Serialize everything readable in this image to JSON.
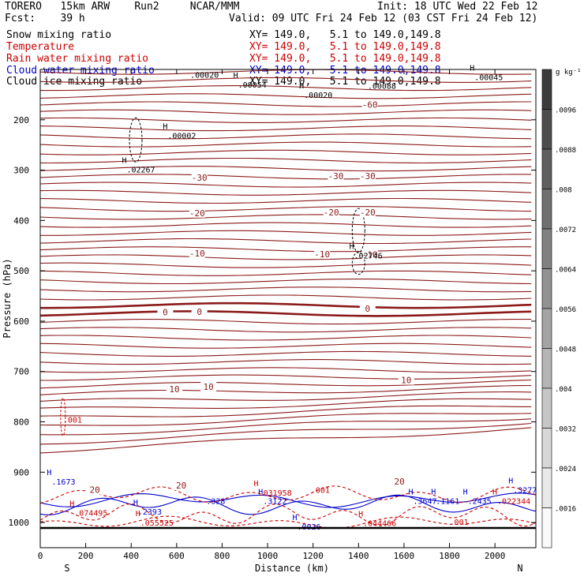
{
  "header": {
    "model": "TORERO   15km ARW    Run2     NCAR/MMM",
    "init": "Init: 18 UTC Wed 22 Feb 12",
    "fcst": "Fcst:    39 h",
    "valid": "Valid: 09 UTC Fri 24 Feb 12 (03 CST Fri 24 Feb 12)",
    "fields": [
      {
        "name": "Snow mixing ratio",
        "xy": "XY= 149.0,   5.1 to 149.0,149.8",
        "color": "#000000"
      },
      {
        "name": "Temperature",
        "xy": "XY= 149.0,   5.1 to 149.0,149.8",
        "color": "#cc0000"
      },
      {
        "name": "Rain water mixing ratio",
        "xy": "XY= 149.0,   5.1 to 149.0,149.8",
        "color": "#cc0000"
      },
      {
        "name": "Cloud water mixing ratio",
        "xy": "XY= 149.0,   5.1 to 149.0,149.8",
        "color": "#0000cc"
      },
      {
        "name": "Cloud ice mixing ratio",
        "xy": "XY= 149.0,   5.1 to 149.0,149.8",
        "color": "#000000"
      }
    ]
  },
  "chart_data": {
    "type": "contour-cross-section",
    "xlabel": "Distance (km)",
    "ylabel": "Pressure (hPa)",
    "xlim": [
      0,
      2180
    ],
    "ylim": [
      1050,
      100
    ],
    "x_ticks": [
      0,
      200,
      400,
      600,
      800,
      1000,
      1200,
      1400,
      1600,
      1800,
      2000
    ],
    "y_ticks": [
      200,
      300,
      400,
      500,
      600,
      700,
      800,
      900,
      1000
    ],
    "x_ends": {
      "left": "S",
      "right": "N"
    },
    "colorbar": {
      "unit": "g kg⁻¹",
      "ticks": [
        ".0096",
        ".0088",
        ".008",
        ".0072",
        ".0064",
        ".0056",
        ".0048",
        ".004",
        ".0032",
        ".0024",
        ".0016"
      ]
    },
    "temperature_labels": [
      {
        "text": "-60",
        "x": 1450,
        "p": 170
      },
      {
        "text": "-30",
        "x": 700,
        "p": 315
      },
      {
        "text": "-30",
        "x": 1300,
        "p": 312
      },
      {
        "text": "-30",
        "x": 1440,
        "p": 312
      },
      {
        "text": "-20",
        "x": 690,
        "p": 385
      },
      {
        "text": "-20",
        "x": 1280,
        "p": 384
      },
      {
        "text": "-20",
        "x": 1440,
        "p": 384
      },
      {
        "text": "-10",
        "x": 690,
        "p": 465
      },
      {
        "text": "-10",
        "x": 1240,
        "p": 467
      },
      {
        "text": "-10",
        "x": 1450,
        "p": 468
      },
      {
        "text": "0",
        "x": 550,
        "p": 582
      },
      {
        "text": "0",
        "x": 700,
        "p": 581
      },
      {
        "text": "0",
        "x": 1440,
        "p": 575
      },
      {
        "text": "10",
        "x": 590,
        "p": 735
      },
      {
        "text": "10",
        "x": 740,
        "p": 730
      },
      {
        "text": "10",
        "x": 1610,
        "p": 717
      },
      {
        "text": "20",
        "x": 240,
        "p": 935
      },
      {
        "text": "20",
        "x": 620,
        "p": 926
      },
      {
        "text": "20",
        "x": 1580,
        "p": 918
      }
    ],
    "maxima_labels": [
      {
        "text": ".00020",
        "x": 660,
        "p": 110,
        "mark": ""
      },
      {
        "text": ".00054",
        "x": 870,
        "p": 130,
        "mark": "H"
      },
      {
        "text": ".00020",
        "x": 1160,
        "p": 150,
        "mark": "H"
      },
      {
        "text": ".00088",
        "x": 1440,
        "p": 132,
        "mark": ""
      },
      {
        "text": ".00045",
        "x": 1910,
        "p": 115,
        "mark": "H"
      },
      {
        "text": ".00002",
        "x": 560,
        "p": 231,
        "mark": "H"
      },
      {
        "text": ".02267",
        "x": 380,
        "p": 298,
        "mark": "H"
      },
      {
        "text": ".02746",
        "x": 1380,
        "p": 469,
        "mark": "H"
      },
      {
        "text": ".001",
        "x": 100,
        "p": 795,
        "mark": ""
      },
      {
        "text": ".1673",
        "x": 50,
        "p": 918,
        "mark": "H"
      },
      {
        "text": ".074495",
        "x": 150,
        "p": 980,
        "mark": "H"
      },
      {
        "text": ".2393",
        "x": 430,
        "p": 978,
        "mark": "H"
      },
      {
        "text": ".055525",
        "x": 440,
        "p": 1000,
        "mark": "H"
      },
      {
        "text": ".328",
        "x": 730,
        "p": 957,
        "mark": ""
      },
      {
        "text": ".031958",
        "x": 960,
        "p": 940,
        "mark": "H"
      },
      {
        "text": ".3122",
        "x": 980,
        "p": 957,
        "mark": "H"
      },
      {
        "text": ".001",
        "x": 1190,
        "p": 935,
        "mark": ""
      },
      {
        "text": ".0026",
        "x": 1130,
        "p": 1008,
        "mark": "H"
      },
      {
        "text": ".044466",
        "x": 1420,
        "p": 1001,
        "mark": "H"
      },
      {
        "text": ".3647",
        "x": 1640,
        "p": 957,
        "mark": "H"
      },
      {
        "text": ".1161",
        "x": 1740,
        "p": 957,
        "mark": "H"
      },
      {
        "text": ".2435",
        "x": 1880,
        "p": 957,
        "mark": "H"
      },
      {
        "text": ".022344",
        "x": 2010,
        "p": 957,
        "mark": "H"
      },
      {
        "text": ".3277",
        "x": 2080,
        "p": 935,
        "mark": "H"
      },
      {
        "text": ".001",
        "x": 1800,
        "p": 998,
        "mark": ""
      }
    ]
  }
}
